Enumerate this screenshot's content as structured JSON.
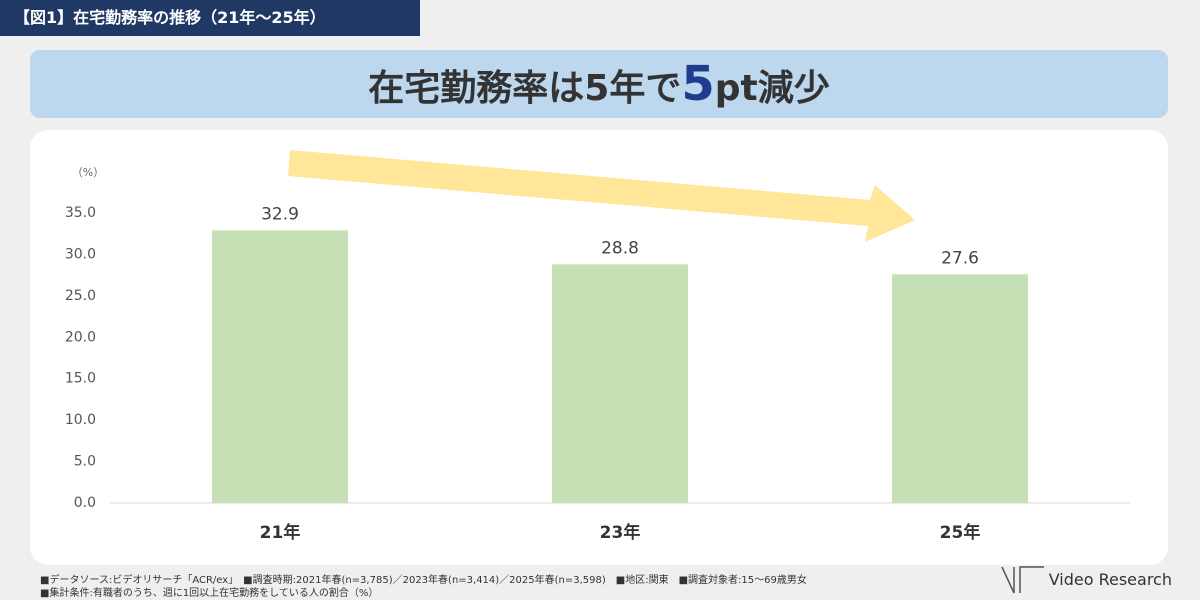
{
  "header": {
    "tag": "【図1】在宅勤務率の推移（21年～25年）"
  },
  "headline": {
    "parts": [
      "在宅勤務率は5年で",
      "5",
      "pt減少"
    ]
  },
  "chart_data": {
    "type": "bar",
    "unit_label": "（%）",
    "categories": [
      "21年",
      "23年",
      "25年"
    ],
    "values": [
      32.9,
      28.8,
      27.6
    ],
    "color": "#c5e0b4",
    "ylim": [
      0,
      35
    ],
    "yticks": [
      {
        "value": 0,
        "label": "0.0"
      },
      {
        "value": 5,
        "label": "5.0"
      },
      {
        "value": 10,
        "label": "10.0"
      },
      {
        "value": 15,
        "label": "15.0"
      },
      {
        "value": 20,
        "label": "20.0"
      },
      {
        "value": 25,
        "label": "25.0"
      },
      {
        "value": 30,
        "label": "30.0"
      },
      {
        "value": 35,
        "label": "35.0"
      }
    ],
    "grid": false
  },
  "footnotes": [
    "■データソース:ビデオリサーチ「ACR/ex」　■調査時期:2021年春(n=3,785)／2023年春(n=3,414)／2025年春(n=3,598)　■地区:関東　■調査対象者:15～69歳男女",
    "■集計条件:有職者のうち、週に1回以上在宅勤務をしている人の割合（%）"
  ],
  "logo": "Video Research"
}
